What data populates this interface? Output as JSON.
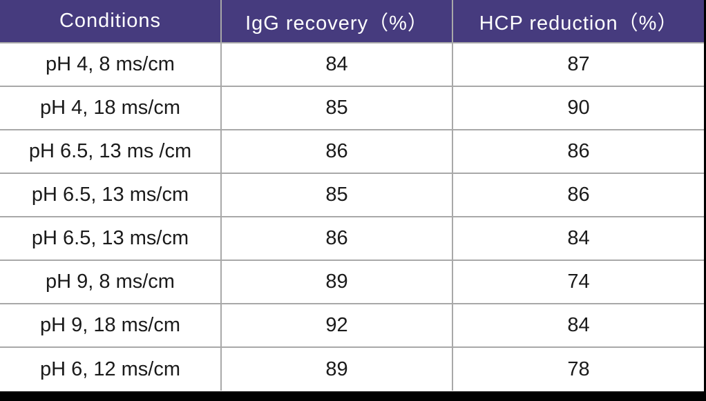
{
  "table": {
    "columns": [
      {
        "label": "Conditions"
      },
      {
        "label": "IgG recovery（%）"
      },
      {
        "label": "HCP reduction（%）"
      }
    ],
    "rows": [
      {
        "condition": "pH 4, 8 ms/cm",
        "igg_recovery": "84",
        "hcp_reduction": "87"
      },
      {
        "condition": "pH 4, 18 ms/cm",
        "igg_recovery": "85",
        "hcp_reduction": "90"
      },
      {
        "condition": "pH 6.5, 13 ms /cm",
        "igg_recovery": "86",
        "hcp_reduction": "86"
      },
      {
        "condition": "pH 6.5, 13 ms/cm",
        "igg_recovery": "85",
        "hcp_reduction": "86"
      },
      {
        "condition": "pH 6.5, 13 ms/cm",
        "igg_recovery": "86",
        "hcp_reduction": "84"
      },
      {
        "condition": "pH 9, 8 ms/cm",
        "igg_recovery": "89",
        "hcp_reduction": "74"
      },
      {
        "condition": "pH 9, 18 ms/cm",
        "igg_recovery": "92",
        "hcp_reduction": "84"
      },
      {
        "condition": "pH 6, 12 ms/cm",
        "igg_recovery": "89",
        "hcp_reduction": "78"
      }
    ]
  },
  "colors": {
    "header_bg": "#463b7e",
    "header_text": "#ffffff",
    "grid_line": "#a8a8a8",
    "body_text": "#1a1a1a",
    "bottom_bar": "#000000"
  },
  "chart_data": {
    "type": "table",
    "title": "",
    "columns": [
      "Conditions",
      "IgG recovery（%）",
      "HCP reduction（%）"
    ],
    "rows": [
      [
        "pH 4, 8 ms/cm",
        84,
        87
      ],
      [
        "pH 4, 18 ms/cm",
        85,
        90
      ],
      [
        "pH 6.5, 13 ms /cm",
        86,
        86
      ],
      [
        "pH 6.5, 13 ms/cm",
        85,
        86
      ],
      [
        "pH 6.5, 13 ms/cm",
        86,
        84
      ],
      [
        "pH 9, 8 ms/cm",
        89,
        74
      ],
      [
        "pH 9, 18 ms/cm",
        92,
        84
      ],
      [
        "pH 6, 12 ms/cm",
        89,
        78
      ]
    ]
  }
}
